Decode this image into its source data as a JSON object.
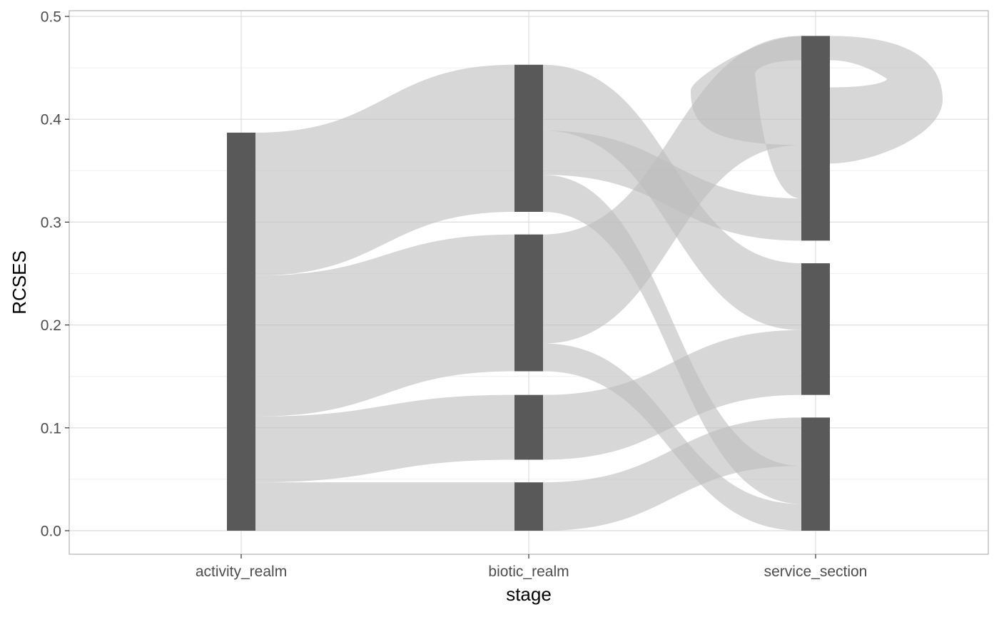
{
  "chart_data": {
    "type": "sankey",
    "title": "",
    "xlabel": "stage",
    "ylabel": "RCSES",
    "ylim": [
      -0.0165,
      0.505
    ],
    "y_ticks": [
      0.0,
      0.1,
      0.2,
      0.3,
      0.4,
      0.5
    ],
    "y_tick_labels": [
      "0.0",
      "0.1",
      "0.2",
      "0.3",
      "0.4",
      "0.5"
    ],
    "stages": [
      "activity_realm",
      "biotic_realm",
      "service_section"
    ],
    "grid": true,
    "legend": "none",
    "colors": {
      "node": "#595959",
      "flow": "#bdbdbd",
      "panel_border": "#b3b3b3",
      "grid_major": "#dedede",
      "grid_minor": "#efefef"
    },
    "nodes": [
      {
        "stage": "activity_realm",
        "y0": 0.0,
        "y1": 0.387
      },
      {
        "stage": "biotic_realm",
        "y0": 0.0,
        "y1": 0.047
      },
      {
        "stage": "biotic_realm",
        "y0": 0.069,
        "y1": 0.132
      },
      {
        "stage": "biotic_realm",
        "y0": 0.155,
        "y1": 0.288
      },
      {
        "stage": "biotic_realm",
        "y0": 0.31,
        "y1": 0.453
      },
      {
        "stage": "service_section",
        "y0": 0.0,
        "y1": 0.11
      },
      {
        "stage": "service_section",
        "y0": 0.132,
        "y1": 0.26
      },
      {
        "stage": "service_section",
        "y0": 0.282,
        "y1": 0.481
      },
      {
        "stage": "service_section",
        "y0": 0.357,
        "y1": 0.407
      }
    ],
    "flows": [
      {
        "from": "activity_realm",
        "to": "biotic_realm",
        "from_y": [
          0.248,
          0.387
        ],
        "to_y": [
          0.31,
          0.453
        ]
      },
      {
        "from": "activity_realm",
        "to": "biotic_realm",
        "from_y": [
          0.111,
          0.248
        ],
        "to_y": [
          0.155,
          0.288
        ]
      },
      {
        "from": "activity_realm",
        "to": "biotic_realm",
        "from_y": [
          0.047,
          0.111
        ],
        "to_y": [
          0.069,
          0.132
        ]
      },
      {
        "from": "activity_realm",
        "to": "biotic_realm",
        "from_y": [
          0.0,
          0.047
        ],
        "to_y": [
          0.0,
          0.047
        ]
      },
      {
        "from": "biotic_realm",
        "to": "service_section",
        "from_y": [
          0.389,
          0.453
        ],
        "to_y": [
          0.195,
          0.26
        ]
      },
      {
        "from": "biotic_realm",
        "to": "service_section",
        "from_y": [
          0.346,
          0.389
        ],
        "to_y": [
          0.282,
          0.323
        ]
      },
      {
        "from": "biotic_realm",
        "to": "service_section",
        "from_y": [
          0.31,
          0.346
        ],
        "to_y": [
          0.026,
          0.063
        ]
      },
      {
        "from": "biotic_realm",
        "to": "service_section",
        "from_y": [
          0.182,
          0.288
        ],
        "to_y": [
          0.375,
          0.481
        ]
      },
      {
        "from": "biotic_realm",
        "to": "service_section",
        "from_y": [
          0.155,
          0.182
        ],
        "to_y": [
          0.0,
          0.026
        ]
      },
      {
        "from": "biotic_realm",
        "to": "service_section",
        "from_y": [
          0.069,
          0.132
        ],
        "to_y": [
          0.132,
          0.195
        ]
      },
      {
        "from": "biotic_realm",
        "to": "service_section",
        "from_y": [
          0.0,
          0.047
        ],
        "to_y": [
          0.063,
          0.11
        ]
      },
      {
        "from": "service_section",
        "to": "service_section",
        "loop": true,
        "from_y": [
          0.357,
          0.431
        ],
        "to_y": [
          0.323,
          0.375
        ],
        "loop_extent": 0.481
      }
    ]
  }
}
